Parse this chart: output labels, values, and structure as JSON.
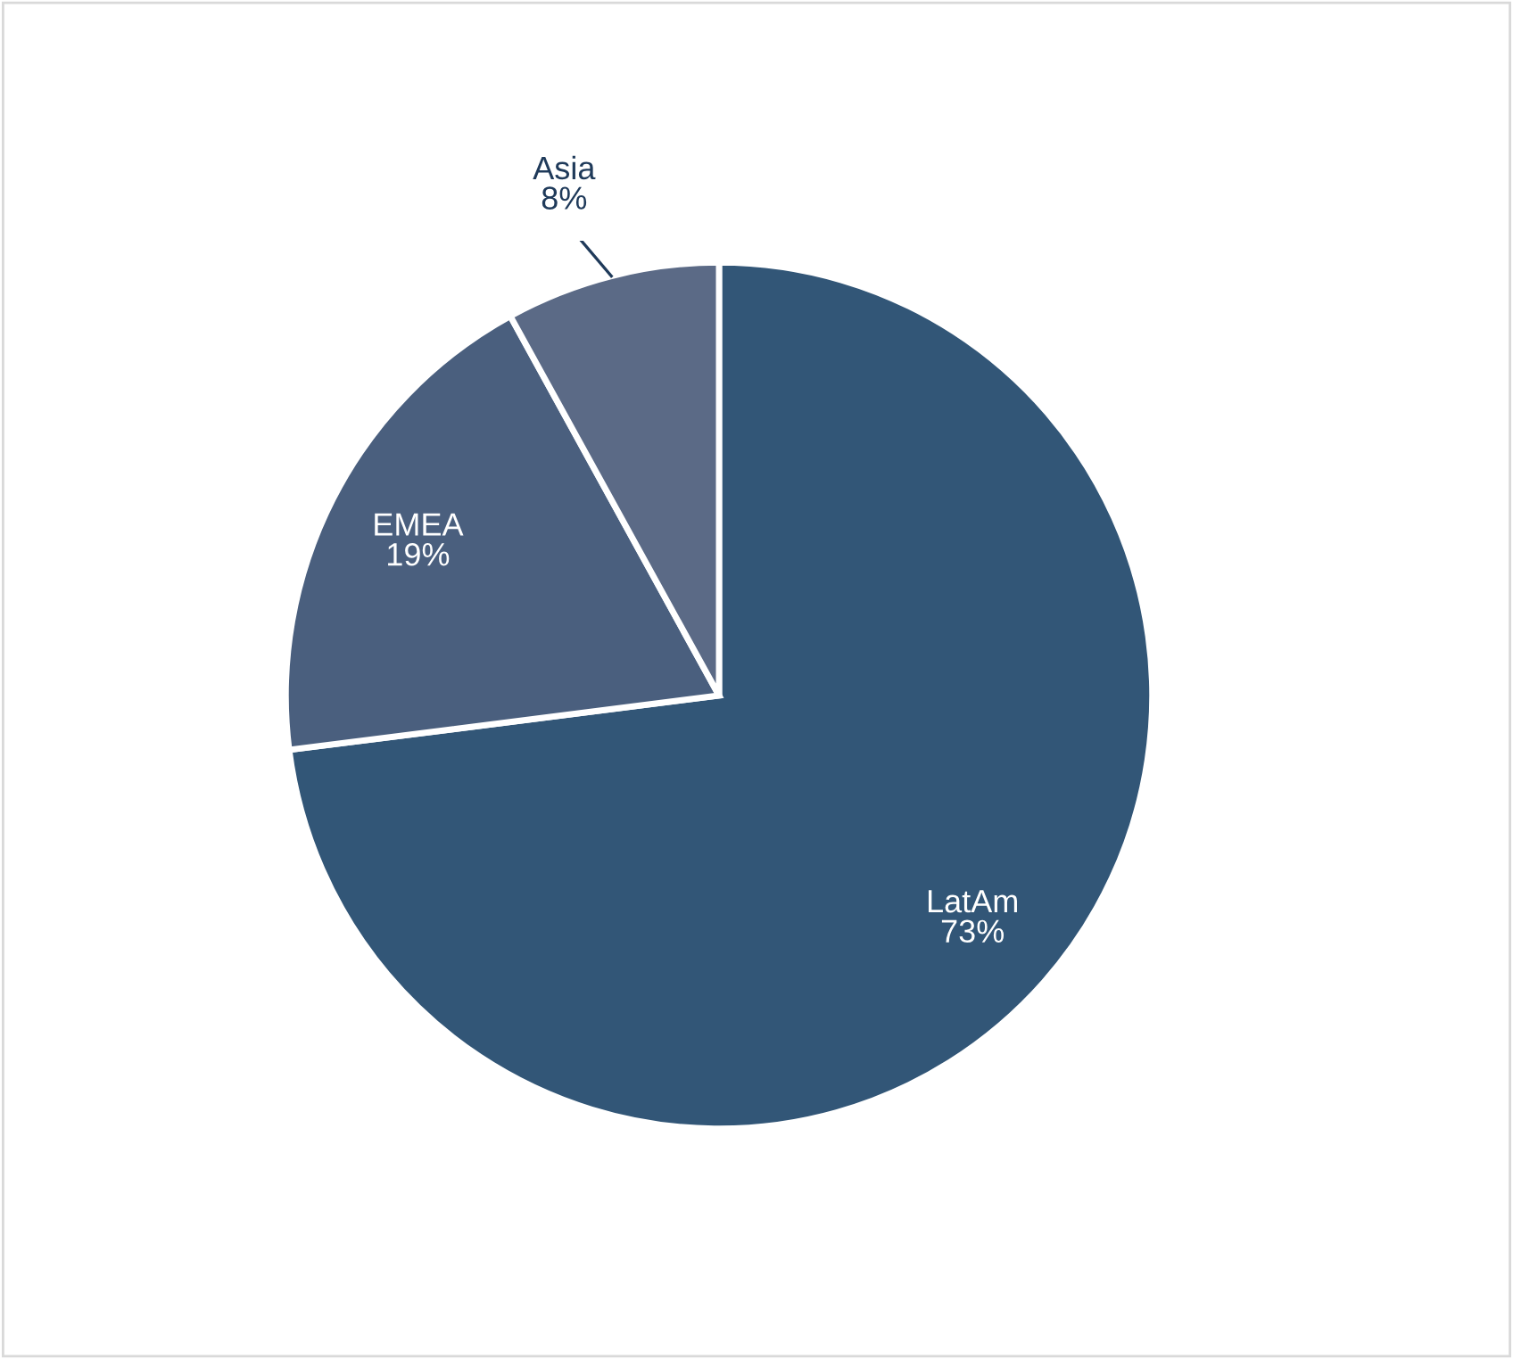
{
  "chart_data": {
    "type": "pie",
    "categories": [
      "LatAm",
      "EMEA",
      "Asia"
    ],
    "values": [
      73,
      19,
      8
    ],
    "value_labels": [
      "73%",
      "19%",
      "8%"
    ],
    "colors": [
      "#325677",
      "#4a5f7e",
      "#5b6a86"
    ]
  }
}
